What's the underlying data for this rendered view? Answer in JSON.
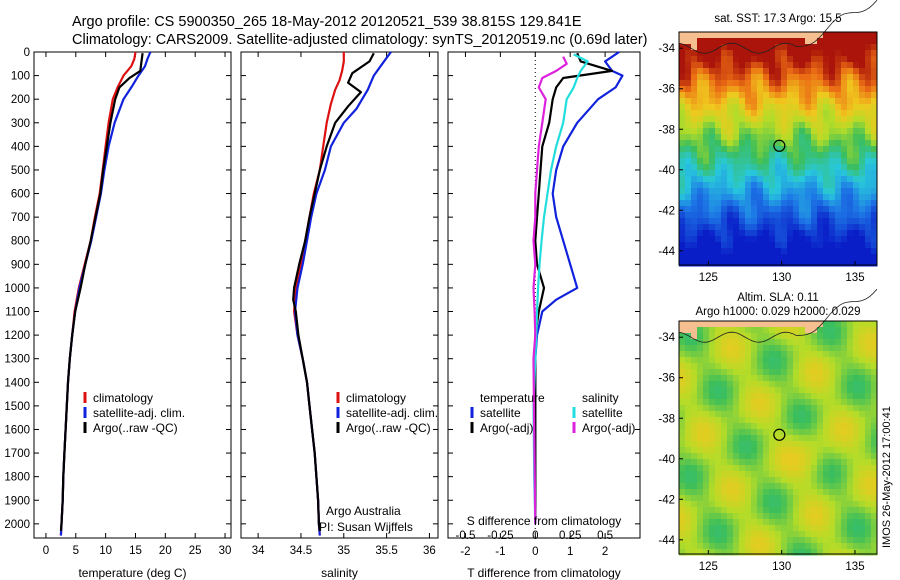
{
  "header": {
    "line1": "Argo profile: CS 5900350_265 18-May-2012 20120521_539 38.815S 129.841E",
    "line2": "Climatology: CARS2009. Satellite-adjusted climatology: synTS_20120519.nc (0.69d later)"
  },
  "colors": {
    "climatology": "#dd1111",
    "satellite": "#1122dd",
    "argo": "#000000",
    "satellite_s": "#22dddd",
    "argo_s": "#dd22dd"
  },
  "chart_data": [
    {
      "type": "line",
      "id": "temperature",
      "xlabel": "temperature (deg C)",
      "xlim": [
        -2,
        31
      ],
      "ylim": [
        2060,
        0
      ],
      "xticks": [
        0,
        5,
        10,
        15,
        20,
        25,
        30
      ],
      "yticks": [
        0,
        100,
        200,
        300,
        400,
        500,
        600,
        700,
        800,
        900,
        1000,
        1100,
        1200,
        1300,
        1400,
        1500,
        1600,
        1700,
        1800,
        1900,
        2000
      ],
      "legend": [
        "climatology",
        "satellite-adj. clim.",
        "Argo(..raw -QC)"
      ],
      "series": [
        {
          "name": "climatology",
          "color_key": "climatology",
          "points": [
            [
              15,
              0
            ],
            [
              14.8,
              30
            ],
            [
              14.3,
              60
            ],
            [
              13,
              100
            ],
            [
              12,
              150
            ],
            [
              11.2,
              200
            ],
            [
              10.5,
              300
            ],
            [
              10,
              400
            ],
            [
              9.5,
              500
            ],
            [
              9,
              600
            ],
            [
              8.2,
              700
            ],
            [
              7.5,
              800
            ],
            [
              6.5,
              900
            ],
            [
              5.5,
              1000
            ],
            [
              4.8,
              1100
            ],
            [
              4.4,
              1200
            ],
            [
              4,
              1300
            ],
            [
              3.7,
              1400
            ],
            [
              3.5,
              1500
            ],
            [
              3.3,
              1600
            ],
            [
              3.1,
              1700
            ],
            [
              2.9,
              1800
            ],
            [
              2.8,
              1900
            ],
            [
              2.6,
              2000
            ],
            [
              2.5,
              2050
            ]
          ]
        },
        {
          "name": "satellite-adj. clim.",
          "color_key": "satellite",
          "points": [
            [
              17.5,
              0
            ],
            [
              17,
              30
            ],
            [
              16.6,
              60
            ],
            [
              15.5,
              100
            ],
            [
              14.3,
              150
            ],
            [
              13,
              200
            ],
            [
              11.5,
              300
            ],
            [
              10.5,
              400
            ],
            [
              9.8,
              500
            ],
            [
              9.2,
              600
            ],
            [
              8.4,
              700
            ],
            [
              7.6,
              800
            ],
            [
              6.6,
              900
            ],
            [
              5.6,
              1000
            ],
            [
              4.9,
              1100
            ],
            [
              4.4,
              1200
            ],
            [
              4,
              1300
            ],
            [
              3.7,
              1400
            ],
            [
              3.5,
              1500
            ],
            [
              3.3,
              1600
            ],
            [
              3.1,
              1700
            ],
            [
              2.9,
              1800
            ],
            [
              2.8,
              1900
            ],
            [
              2.6,
              2000
            ],
            [
              2.5,
              2050
            ]
          ]
        },
        {
          "name": "Argo(..raw -QC)",
          "color_key": "argo",
          "points": [
            [
              16.2,
              5
            ],
            [
              16,
              40
            ],
            [
              15.8,
              80
            ],
            [
              14,
              110
            ],
            [
              12.3,
              150
            ],
            [
              11.6,
              200
            ],
            [
              10.8,
              300
            ],
            [
              10.2,
              400
            ],
            [
              9.6,
              500
            ],
            [
              9.1,
              600
            ],
            [
              8.3,
              700
            ],
            [
              7.5,
              800
            ],
            [
              6.6,
              900
            ],
            [
              5.8,
              1000
            ],
            [
              4.9,
              1100
            ],
            [
              4.4,
              1200
            ],
            [
              4,
              1300
            ],
            [
              3.7,
              1400
            ],
            [
              3.5,
              1500
            ],
            [
              3.3,
              1600
            ],
            [
              3.1,
              1700
            ],
            [
              2.9,
              1800
            ],
            [
              2.8,
              1900
            ],
            [
              2.6,
              2000
            ],
            [
              2.5,
              2030
            ]
          ]
        }
      ]
    },
    {
      "type": "line",
      "id": "salinity",
      "xlabel": "salinity",
      "xlim": [
        33.8,
        36.1
      ],
      "ylim": [
        2060,
        0
      ],
      "xticks": [
        34,
        34.5,
        35,
        35.5,
        36
      ],
      "legend": [
        "climatology",
        "satellite-adj. clim.",
        "Argo(..raw -QC)"
      ],
      "annotation": [
        "Argo Australia",
        "PI: Susan Wijffels"
      ],
      "series": [
        {
          "name": "climatology",
          "color_key": "climatology",
          "points": [
            [
              35,
              0
            ],
            [
              35,
              40
            ],
            [
              34.98,
              80
            ],
            [
              34.95,
              120
            ],
            [
              34.9,
              160
            ],
            [
              34.85,
              220
            ],
            [
              34.8,
              300
            ],
            [
              34.76,
              400
            ],
            [
              34.72,
              500
            ],
            [
              34.65,
              600
            ],
            [
              34.6,
              700
            ],
            [
              34.55,
              800
            ],
            [
              34.5,
              900
            ],
            [
              34.44,
              1000
            ],
            [
              34.42,
              1100
            ],
            [
              34.46,
              1200
            ],
            [
              34.52,
              1300
            ],
            [
              34.57,
              1400
            ],
            [
              34.6,
              1500
            ],
            [
              34.63,
              1600
            ],
            [
              34.66,
              1700
            ],
            [
              34.68,
              1800
            ],
            [
              34.7,
              1900
            ],
            [
              34.71,
              2000
            ],
            [
              34.72,
              2050
            ]
          ]
        },
        {
          "name": "satellite-adj. clim.",
          "color_key": "satellite",
          "points": [
            [
              35.55,
              0
            ],
            [
              35.45,
              50
            ],
            [
              35.35,
              100
            ],
            [
              35.28,
              160
            ],
            [
              35.15,
              240
            ],
            [
              35,
              300
            ],
            [
              34.85,
              400
            ],
            [
              34.78,
              500
            ],
            [
              34.68,
              600
            ],
            [
              34.62,
              700
            ],
            [
              34.57,
              800
            ],
            [
              34.52,
              900
            ],
            [
              34.46,
              1000
            ],
            [
              34.43,
              1100
            ],
            [
              34.46,
              1200
            ],
            [
              34.52,
              1300
            ],
            [
              34.57,
              1400
            ],
            [
              34.6,
              1500
            ],
            [
              34.63,
              1600
            ],
            [
              34.66,
              1700
            ],
            [
              34.68,
              1800
            ],
            [
              34.7,
              1900
            ],
            [
              34.71,
              2000
            ],
            [
              34.72,
              2050
            ]
          ]
        },
        {
          "name": "Argo(..raw -QC)",
          "color_key": "argo",
          "points": [
            [
              35.35,
              5
            ],
            [
              35.3,
              40
            ],
            [
              35.1,
              90
            ],
            [
              35.05,
              130
            ],
            [
              35.2,
              170
            ],
            [
              35.05,
              230
            ],
            [
              34.9,
              300
            ],
            [
              34.8,
              400
            ],
            [
              34.72,
              500
            ],
            [
              34.66,
              600
            ],
            [
              34.6,
              700
            ],
            [
              34.55,
              800
            ],
            [
              34.48,
              900
            ],
            [
              34.42,
              1000
            ],
            [
              34.41,
              1050
            ],
            [
              34.44,
              1100
            ],
            [
              34.47,
              1200
            ],
            [
              34.52,
              1300
            ],
            [
              34.57,
              1400
            ],
            [
              34.6,
              1500
            ],
            [
              34.63,
              1600
            ],
            [
              34.66,
              1700
            ],
            [
              34.68,
              1800
            ],
            [
              34.7,
              1900
            ],
            [
              34.71,
              2000
            ],
            [
              34.72,
              2030
            ]
          ]
        }
      ]
    },
    {
      "type": "line",
      "id": "difference",
      "xlabel": "T difference from climatology",
      "xlabel_top": "S difference from climatology",
      "xlim": [
        -2.5,
        3
      ],
      "ylim": [
        2060,
        0
      ],
      "xticks_T": [
        -2,
        -1,
        0,
        1,
        2
      ],
      "xticks_S": [
        -0.5,
        -0.25,
        0,
        0.25,
        0.5
      ],
      "xticks_S_labels": [
        "-0.5",
        "-0.25",
        "0",
        "0.25",
        "0.5"
      ],
      "legend_left_title": "temperature",
      "legend_right_title": "salinity",
      "legend": [
        "satellite",
        "Argo(-adj)",
        "satellite",
        "Argo(-adj)"
      ],
      "series": [
        {
          "name": "satellite",
          "color_key": "satellite",
          "points": [
            [
              2.4,
              0
            ],
            [
              2,
              40
            ],
            [
              2.2,
              80
            ],
            [
              2.5,
              100
            ],
            [
              2.3,
              150
            ],
            [
              1.8,
              200
            ],
            [
              1.2,
              300
            ],
            [
              0.8,
              400
            ],
            [
              0.6,
              500
            ],
            [
              0.5,
              600
            ],
            [
              0.6,
              700
            ],
            [
              0.8,
              800
            ],
            [
              1,
              900
            ],
            [
              1.2,
              1000
            ],
            [
              0.6,
              1050
            ],
            [
              0.2,
              1100
            ],
            [
              0.05,
              1200
            ],
            [
              0,
              1300
            ],
            [
              0,
              1500
            ],
            [
              0,
              2000
            ]
          ]
        },
        {
          "name": "Argo(-adj)",
          "color_key": "argo",
          "points": [
            [
              1.2,
              5
            ],
            [
              1.3,
              40
            ],
            [
              2.2,
              80
            ],
            [
              0.8,
              110
            ],
            [
              0.6,
              150
            ],
            [
              0.5,
              200
            ],
            [
              0.4,
              300
            ],
            [
              0.2,
              400
            ],
            [
              0.15,
              500
            ],
            [
              0.1,
              600
            ],
            [
              0.05,
              700
            ],
            [
              0,
              800
            ],
            [
              0.05,
              900
            ],
            [
              0.25,
              1000
            ],
            [
              0.1,
              1100
            ],
            [
              0,
              1200
            ],
            [
              0,
              1400
            ],
            [
              0,
              2000
            ]
          ]
        },
        {
          "name": "satellite",
          "color_key": "satellite_s",
          "points": [
            [
              1.1,
              10
            ],
            [
              1.5,
              40
            ],
            [
              1.3,
              80
            ],
            [
              1.2,
              110
            ],
            [
              1.1,
              150
            ],
            [
              0.9,
              200
            ],
            [
              0.8,
              300
            ],
            [
              0.6,
              400
            ],
            [
              0.45,
              500
            ],
            [
              0.35,
              600
            ],
            [
              0.25,
              700
            ],
            [
              0.18,
              800
            ],
            [
              0.12,
              900
            ],
            [
              0.08,
              1000
            ],
            [
              0.05,
              1100
            ],
            [
              0.03,
              1200
            ],
            [
              0,
              1300
            ],
            [
              -0.05,
              1500
            ],
            [
              -0.03,
              1800
            ],
            [
              0,
              2000
            ]
          ]
        },
        {
          "name": "Argo(-adj)",
          "color_key": "argo_s",
          "points": [
            [
              0.8,
              20
            ],
            [
              0.9,
              50
            ],
            [
              0.6,
              80
            ],
            [
              0.2,
              110
            ],
            [
              0.1,
              150
            ],
            [
              0.3,
              200
            ],
            [
              0.2,
              300
            ],
            [
              0.1,
              400
            ],
            [
              0.05,
              500
            ],
            [
              0,
              600
            ],
            [
              0,
              700
            ],
            [
              -0.05,
              800
            ],
            [
              0,
              900
            ],
            [
              -0.05,
              1000
            ],
            [
              -0.02,
              1100
            ],
            [
              0,
              1200
            ],
            [
              -0.05,
              1300
            ],
            [
              -0.03,
              1600
            ],
            [
              0,
              2000
            ]
          ]
        }
      ]
    },
    {
      "type": "heatmap",
      "id": "sst-map",
      "title": "sat. SST: 17.3  Argo: 15.5",
      "xlim": [
        123,
        136.5
      ],
      "ylim": [
        -44.7,
        -33.2
      ],
      "xticks": [
        125,
        130,
        135
      ],
      "yticks": [
        -34,
        -36,
        -38,
        -40,
        -42,
        -44
      ],
      "marker": {
        "lon": 129.841,
        "lat": -38.815
      }
    },
    {
      "type": "heatmap",
      "id": "sla-map",
      "title_line1": "Altim. SLA: 0.11",
      "title_line2": "Argo h1000: 0.029  h2000: 0.029",
      "xlim": [
        123,
        136.5
      ],
      "ylim": [
        -44.7,
        -33.2
      ],
      "xticks": [
        125,
        130,
        135
      ],
      "yticks": [
        -34,
        -36,
        -38,
        -40,
        -42,
        -44
      ],
      "marker": {
        "lon": 129.841,
        "lat": -38.815
      }
    }
  ],
  "footer_credit": "IMOS 26-May-2012 17:00:41"
}
